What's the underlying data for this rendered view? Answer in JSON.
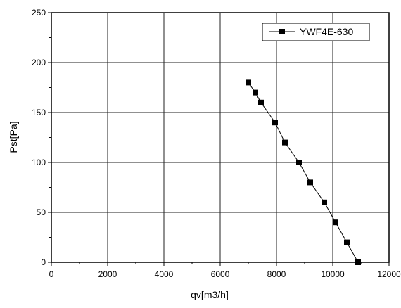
{
  "chart_data": {
    "type": "line",
    "title": "",
    "xlabel": "qv[m3/h]",
    "ylabel": "Pst[Pa]",
    "xlim": [
      0,
      12000
    ],
    "ylim": [
      0,
      250
    ],
    "xticks": [
      0,
      2000,
      4000,
      6000,
      8000,
      10000,
      12000
    ],
    "yticks": [
      0,
      50,
      100,
      150,
      200,
      250
    ],
    "grid": true,
    "legend": {
      "position": "top-right"
    },
    "series": [
      {
        "name": "YWF4E-630",
        "color": "#000000",
        "marker": "square",
        "points": [
          [
            7000,
            180
          ],
          [
            7250,
            170
          ],
          [
            7450,
            160
          ],
          [
            7950,
            140
          ],
          [
            8300,
            120
          ],
          [
            8800,
            100
          ],
          [
            9200,
            80
          ],
          [
            9700,
            60
          ],
          [
            10100,
            40
          ],
          [
            10500,
            20
          ],
          [
            10900,
            0
          ]
        ]
      }
    ]
  }
}
